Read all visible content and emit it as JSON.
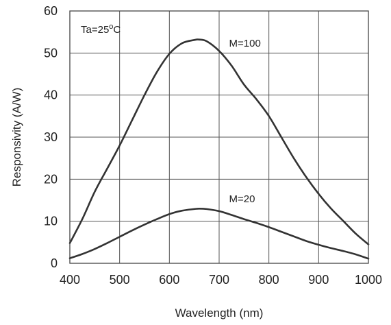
{
  "chart_data": {
    "type": "line",
    "xlabel": "Wavelength  (nm)",
    "ylabel": "Responsivity  (A/W)",
    "xlim": [
      400,
      1000
    ],
    "ylim": [
      0,
      60
    ],
    "xticks": [
      400,
      500,
      600,
      700,
      800,
      900,
      1000
    ],
    "yticks": [
      0,
      10,
      20,
      30,
      40,
      50,
      60
    ],
    "grid": true,
    "annotation": {
      "prefix": "Ta=25",
      "superscript": "o",
      "suffix": "C"
    },
    "series": [
      {
        "name": "M=100",
        "x": [
          400,
          425,
          450,
          475,
          500,
          525,
          550,
          575,
          600,
          625,
          650,
          660,
          675,
          700,
          725,
          750,
          775,
          800,
          825,
          850,
          875,
          900,
          925,
          950,
          975,
          1000
        ],
        "y": [
          4.8,
          10.5,
          17.0,
          22.5,
          28.0,
          34.0,
          40.0,
          45.5,
          49.8,
          52.3,
          53.1,
          53.2,
          52.8,
          50.5,
          47.0,
          42.5,
          39.0,
          35.0,
          30.0,
          25.0,
          20.5,
          16.5,
          13.0,
          10.0,
          7.0,
          4.5
        ],
        "label_at": [
          720,
          51.5
        ]
      },
      {
        "name": "M=20",
        "x": [
          400,
          425,
          450,
          475,
          500,
          525,
          550,
          575,
          600,
          625,
          650,
          660,
          675,
          700,
          725,
          750,
          775,
          800,
          825,
          850,
          875,
          900,
          925,
          950,
          975,
          1000
        ],
        "y": [
          1.2,
          2.2,
          3.4,
          4.8,
          6.3,
          7.8,
          9.2,
          10.5,
          11.7,
          12.5,
          12.9,
          13.0,
          12.9,
          12.4,
          11.5,
          10.5,
          9.6,
          8.6,
          7.5,
          6.4,
          5.3,
          4.4,
          3.6,
          2.9,
          2.1,
          1.1
        ],
        "label_at": [
          720,
          14.5
        ]
      }
    ]
  }
}
